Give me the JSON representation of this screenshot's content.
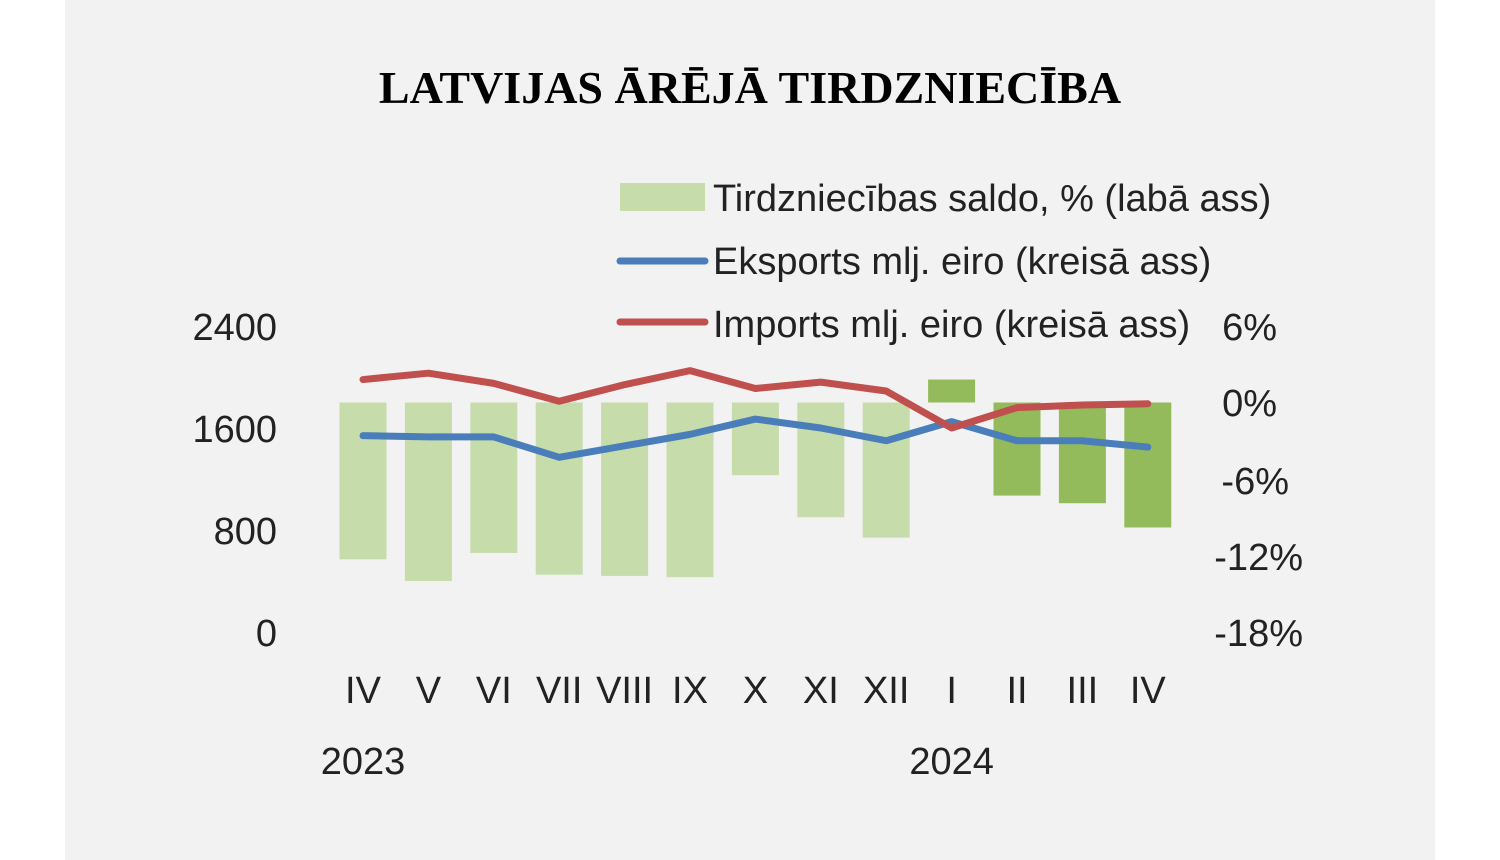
{
  "chart_data": {
    "type": "bar+line",
    "title": "LATVIJAS ĀRĒJĀ TIRDZNIECĪBA",
    "categories": [
      "IV",
      "V",
      "VI",
      "VII",
      "VIII",
      "IX",
      "X",
      "XI",
      "XII",
      "I",
      "II",
      "III",
      "IV"
    ],
    "years": [
      {
        "label": "2023",
        "category_index": 0
      },
      {
        "label": "2024",
        "category_index": 9
      }
    ],
    "left_axis": {
      "ylim": [
        0,
        2400
      ],
      "ticks": [
        "2400",
        "1600",
        "800",
        "0"
      ],
      "tick_values": [
        2400,
        1600,
        800,
        0
      ]
    },
    "right_axis": {
      "ylim": [
        -18,
        6
      ],
      "ticks": [
        "6%",
        "0%",
        "-6%",
        "-12%",
        "-18%"
      ],
      "tick_values": [
        6,
        0,
        -6,
        -12,
        -18
      ]
    },
    "series": [
      {
        "name": "Tirdzniecības saldo, % (labā ass)",
        "kind": "bar",
        "axis": "right",
        "values": [
          -12.3,
          -14.0,
          -11.8,
          -13.5,
          -13.6,
          -13.7,
          -5.7,
          -9.0,
          -10.6,
          1.8,
          -7.3,
          -7.9,
          -9.8
        ],
        "colors": [
          "#c6dcab",
          "#c6dcab",
          "#c6dcab",
          "#c6dcab",
          "#c6dcab",
          "#c6dcab",
          "#c6dcab",
          "#c6dcab",
          "#c6dcab",
          "#94bb5b",
          "#94bb5b",
          "#94bb5b",
          "#94bb5b"
        ]
      },
      {
        "name": "Eksports mlj. eiro (kreisā ass)",
        "kind": "line",
        "axis": "left",
        "color": "#4a7ebb",
        "values": [
          1540,
          1530,
          1530,
          1370,
          1460,
          1550,
          1670,
          1600,
          1500,
          1650,
          1500,
          1500,
          1450
        ]
      },
      {
        "name": "Imports mlj. eiro (kreisā ass)",
        "kind": "line",
        "axis": "left",
        "color": "#c0504d",
        "values": [
          1980,
          2030,
          1950,
          1810,
          1940,
          2050,
          1910,
          1960,
          1890,
          1600,
          1760,
          1780,
          1790
        ]
      }
    ],
    "legend_position": "top-center"
  }
}
